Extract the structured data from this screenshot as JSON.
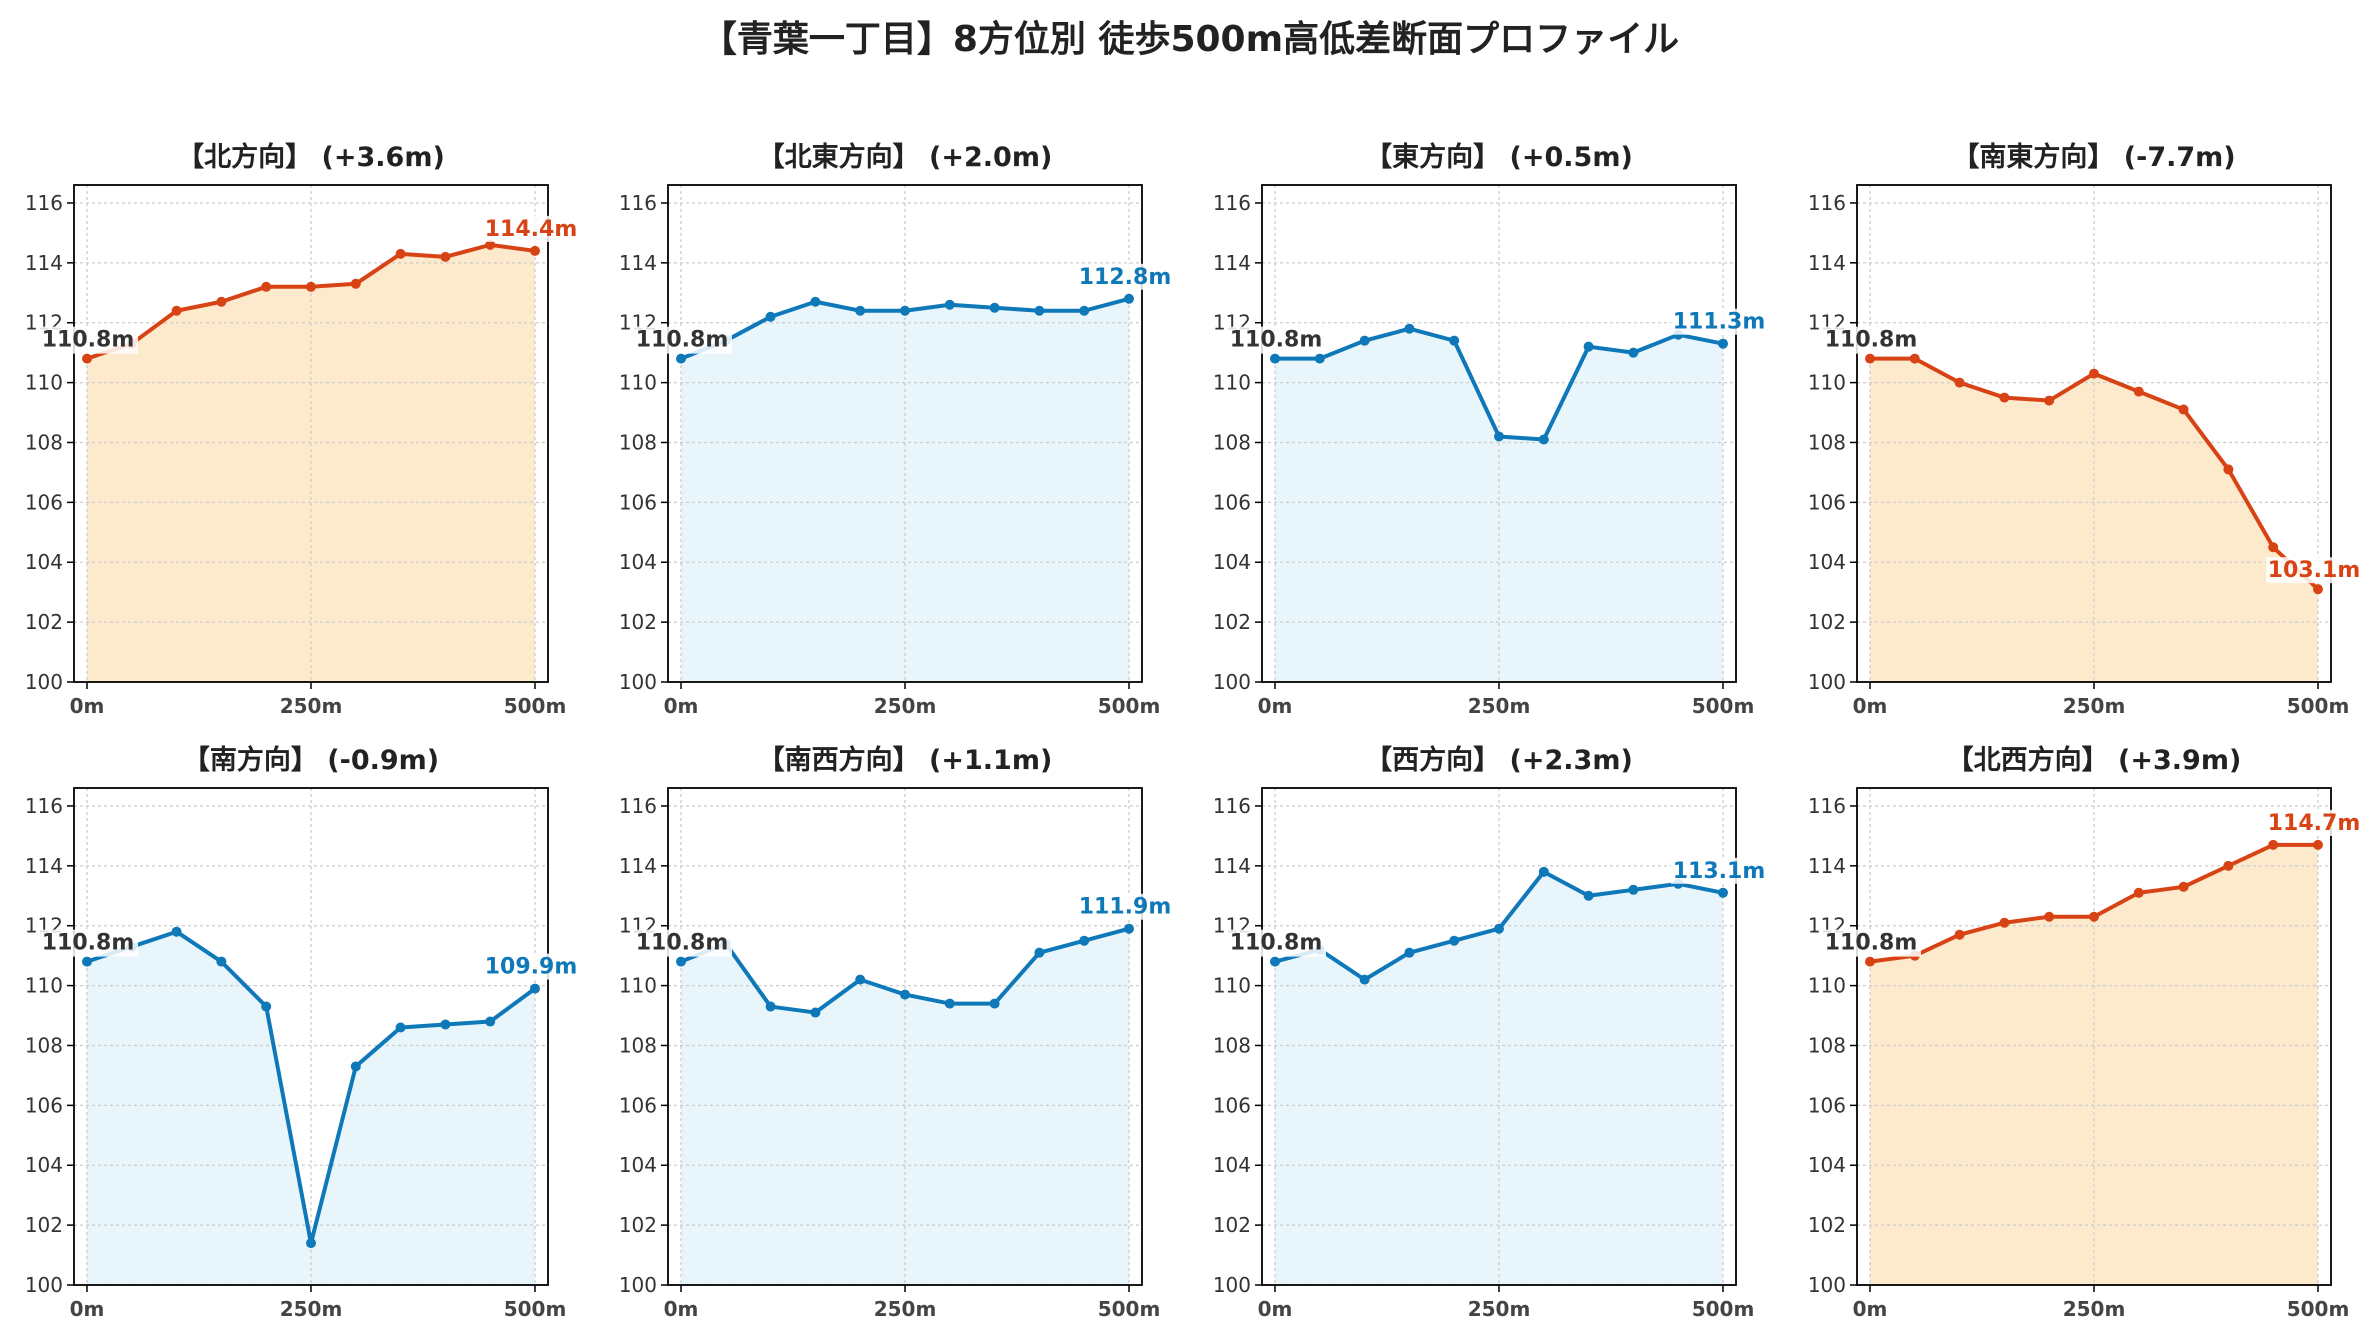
{
  "title": "【青葉一丁目】8方位別 徒歩500m高低差断面プロファイル",
  "colors": {
    "up_line": "#d84315",
    "up_fill": "#fde9cc",
    "down_line": "#0f78b8",
    "down_fill": "#e8f5fb",
    "start_label": "#333333",
    "grid": "#cccccc"
  },
  "chart_data": [
    {
      "type": "line",
      "title": "【北方向】 (+3.6m)",
      "color_scheme": "up",
      "x": [
        0,
        50,
        100,
        150,
        200,
        250,
        300,
        350,
        400,
        450,
        500
      ],
      "values": [
        110.8,
        111.3,
        112.4,
        112.7,
        113.2,
        113.2,
        113.3,
        114.3,
        114.2,
        114.6,
        114.4
      ],
      "start_label": "110.8m",
      "end_label": "114.4m",
      "ylim": [
        100,
        116.6
      ],
      "yticks": [
        "100",
        "102",
        "104",
        "106",
        "108",
        "110",
        "112",
        "114",
        "116"
      ],
      "xticks": [
        "0m",
        "250m",
        "500m"
      ],
      "grid": true
    },
    {
      "type": "line",
      "title": "【北東方向】 (+2.0m)",
      "color_scheme": "down",
      "x": [
        0,
        50,
        100,
        150,
        200,
        250,
        300,
        350,
        400,
        450,
        500
      ],
      "values": [
        110.8,
        111.4,
        112.2,
        112.7,
        112.4,
        112.4,
        112.6,
        112.5,
        112.4,
        112.4,
        112.8
      ],
      "start_label": "110.8m",
      "end_label": "112.8m",
      "ylim": [
        100,
        116.6
      ],
      "yticks": [
        "100",
        "102",
        "104",
        "106",
        "108",
        "110",
        "112",
        "114",
        "116"
      ],
      "xticks": [
        "0m",
        "250m",
        "500m"
      ],
      "grid": true
    },
    {
      "type": "line",
      "title": "【東方向】 (+0.5m)",
      "color_scheme": "down",
      "x": [
        0,
        50,
        100,
        150,
        200,
        250,
        300,
        350,
        400,
        450,
        500
      ],
      "values": [
        110.8,
        110.8,
        111.4,
        111.8,
        111.4,
        108.2,
        108.1,
        111.2,
        111.0,
        111.6,
        111.3
      ],
      "start_label": "110.8m",
      "end_label": "111.3m",
      "ylim": [
        100,
        116.6
      ],
      "yticks": [
        "100",
        "102",
        "104",
        "106",
        "108",
        "110",
        "112",
        "114",
        "116"
      ],
      "xticks": [
        "0m",
        "250m",
        "500m"
      ],
      "grid": true
    },
    {
      "type": "line",
      "title": "【南東方向】 (-7.7m)",
      "color_scheme": "up",
      "x": [
        0,
        50,
        100,
        150,
        200,
        250,
        300,
        350,
        400,
        450,
        500
      ],
      "values": [
        110.8,
        110.8,
        110.0,
        109.5,
        109.4,
        110.3,
        109.7,
        109.1,
        107.1,
        104.5,
        103.1
      ],
      "start_label": "110.8m",
      "end_label": "103.1m",
      "ylim": [
        100,
        116.6
      ],
      "yticks": [
        "100",
        "102",
        "104",
        "106",
        "108",
        "110",
        "112",
        "114",
        "116"
      ],
      "xticks": [
        "0m",
        "250m",
        "500m"
      ],
      "grid": true
    },
    {
      "type": "line",
      "title": "【南方向】 (-0.9m)",
      "color_scheme": "down",
      "x": [
        0,
        50,
        100,
        150,
        200,
        250,
        300,
        350,
        400,
        450,
        500
      ],
      "values": [
        110.8,
        111.3,
        111.8,
        110.8,
        109.3,
        101.4,
        107.3,
        108.6,
        108.7,
        108.8,
        109.9
      ],
      "start_label": "110.8m",
      "end_label": "109.9m",
      "ylim": [
        100,
        116.6
      ],
      "yticks": [
        "100",
        "102",
        "104",
        "106",
        "108",
        "110",
        "112",
        "114",
        "116"
      ],
      "xticks": [
        "0m",
        "250m",
        "500m"
      ],
      "grid": true
    },
    {
      "type": "line",
      "title": "【南西方向】 (+1.1m)",
      "color_scheme": "down",
      "x": [
        0,
        50,
        100,
        150,
        200,
        250,
        300,
        350,
        400,
        450,
        500
      ],
      "values": [
        110.8,
        111.4,
        109.3,
        109.1,
        110.2,
        109.7,
        109.4,
        109.4,
        111.1,
        111.5,
        111.9
      ],
      "start_label": "110.8m",
      "end_label": "111.9m",
      "ylim": [
        100,
        116.6
      ],
      "yticks": [
        "100",
        "102",
        "104",
        "106",
        "108",
        "110",
        "112",
        "114",
        "116"
      ],
      "xticks": [
        "0m",
        "250m",
        "500m"
      ],
      "grid": true
    },
    {
      "type": "line",
      "title": "【西方向】 (+2.3m)",
      "color_scheme": "down",
      "x": [
        0,
        50,
        100,
        150,
        200,
        250,
        300,
        350,
        400,
        450,
        500
      ],
      "values": [
        110.8,
        111.2,
        110.2,
        111.1,
        111.5,
        111.9,
        113.8,
        113.0,
        113.2,
        113.4,
        113.1
      ],
      "start_label": "110.8m",
      "end_label": "113.1m",
      "ylim": [
        100,
        116.6
      ],
      "yticks": [
        "100",
        "102",
        "104",
        "106",
        "108",
        "110",
        "112",
        "114",
        "116"
      ],
      "xticks": [
        "0m",
        "250m",
        "500m"
      ],
      "grid": true
    },
    {
      "type": "line",
      "title": "【北西方向】 (+3.9m)",
      "color_scheme": "up",
      "x": [
        0,
        50,
        100,
        150,
        200,
        250,
        300,
        350,
        400,
        450,
        500
      ],
      "values": [
        110.8,
        111.0,
        111.7,
        112.1,
        112.3,
        112.3,
        113.1,
        113.3,
        114.0,
        114.7,
        114.7
      ],
      "start_label": "110.8m",
      "end_label": "114.7m",
      "ylim": [
        100,
        116.6
      ],
      "yticks": [
        "100",
        "102",
        "104",
        "106",
        "108",
        "110",
        "112",
        "114",
        "116"
      ],
      "xticks": [
        "0m",
        "250m",
        "500m"
      ],
      "grid": true
    }
  ]
}
